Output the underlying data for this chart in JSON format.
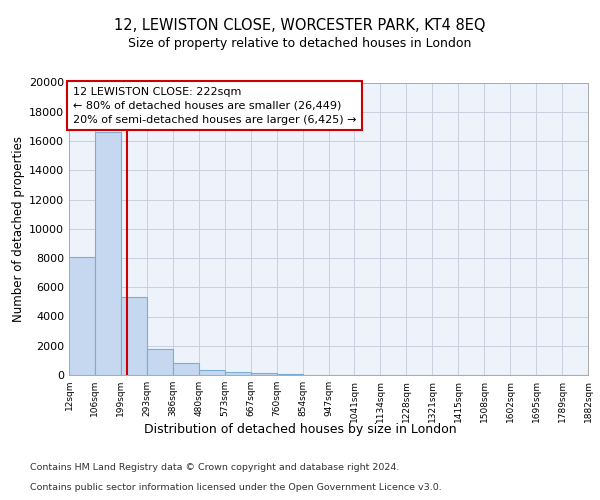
{
  "title": "12, LEWISTON CLOSE, WORCESTER PARK, KT4 8EQ",
  "subtitle": "Size of property relative to detached houses in London",
  "xlabel": "Distribution of detached houses by size in London",
  "ylabel": "Number of detached properties",
  "bar_color": "#c5d8f0",
  "bar_edge_color": "#7aadd4",
  "bar_heights": [
    8100,
    16600,
    5300,
    1750,
    800,
    350,
    200,
    150,
    100,
    0,
    0,
    0,
    0,
    0,
    0,
    0,
    0,
    0,
    0,
    0
  ],
  "tick_labels": [
    "12sqm",
    "106sqm",
    "199sqm",
    "293sqm",
    "386sqm",
    "480sqm",
    "573sqm",
    "667sqm",
    "760sqm",
    "854sqm",
    "947sqm",
    "1041sqm",
    "1134sqm",
    "1228sqm",
    "1321sqm",
    "1415sqm",
    "1508sqm",
    "1602sqm",
    "1695sqm",
    "1789sqm",
    "1882sqm"
  ],
  "ylim": [
    0,
    20000
  ],
  "yticks": [
    0,
    2000,
    4000,
    6000,
    8000,
    10000,
    12000,
    14000,
    16000,
    18000,
    20000
  ],
  "vline_index": 2.24,
  "vline_color": "#cc0000",
  "annotation_line1": "12 LEWISTON CLOSE: 222sqm",
  "annotation_line2": "← 80% of detached houses are smaller (26,449)",
  "annotation_line3": "20% of semi-detached houses are larger (6,425) →",
  "footer_line1": "Contains HM Land Registry data © Crown copyright and database right 2024.",
  "footer_line2": "Contains public sector information licensed under the Open Government Licence v3.0.",
  "background_color": "#eef2fb",
  "grid_color": "#c8cfe0",
  "annotation_box_color": "#ffffff",
  "annotation_box_edge": "#cc0000",
  "n_bins": 20
}
